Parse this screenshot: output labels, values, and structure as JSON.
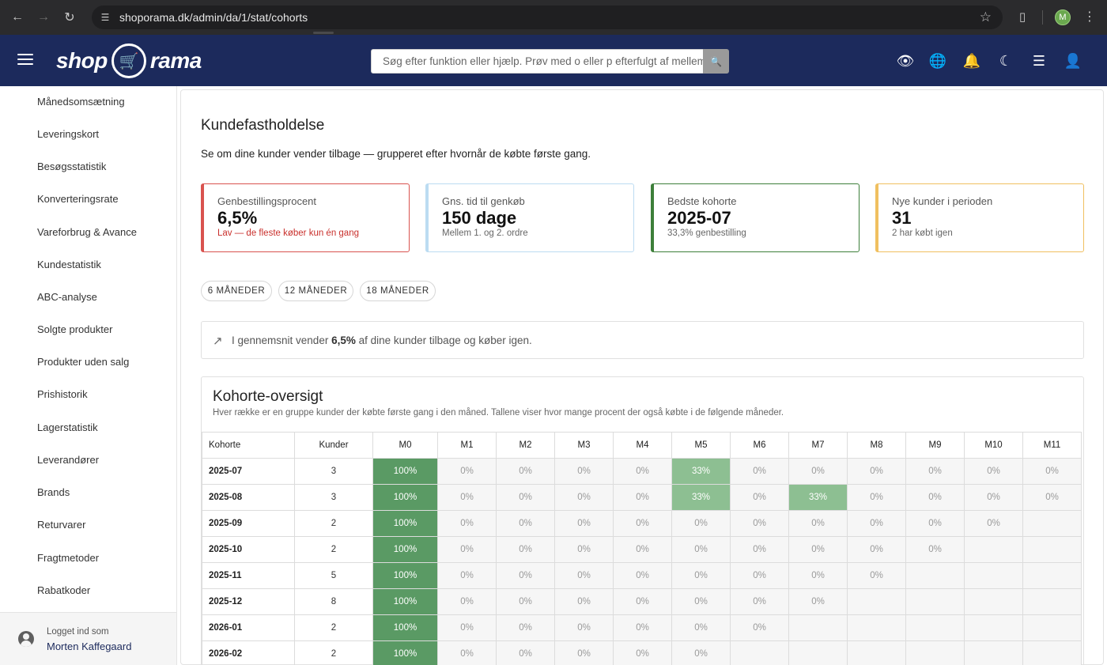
{
  "browser": {
    "url": "shoporama.dk/admin/da/1/stat/cohorts",
    "profile_initial": "M"
  },
  "header": {
    "logo_left": "shop",
    "logo_right": "rama",
    "search_placeholder": "Søg efter funktion eller hjælp. Prøv med o eller p efterfulgt af mellemrum"
  },
  "sidebar": {
    "items": [
      "Månedsomsætning",
      "Leveringskort",
      "Besøgsstatistik",
      "Konverteringsrate",
      "Vareforbrug & Avance",
      "Kundestatistik",
      "ABC-analyse",
      "Solgte produkter",
      "Produkter uden salg",
      "Prishistorik",
      "Lagerstatistik",
      "Leverandører",
      "Brands",
      "Returvarer",
      "Fragtmetoder",
      "Rabatkoder"
    ],
    "logged_in_label": "Logget ind som",
    "user_name": "Morten Kaffegaard"
  },
  "page": {
    "title": "Kundefastholdelse",
    "subtitle": "Se om dine kunder vender tilbage — grupperet efter hvornår de købte første gang."
  },
  "kpis": [
    {
      "label": "Genbestillingsprocent",
      "value": "6,5%",
      "note": "Lav — de fleste køber kun én gang",
      "accent": "#d9534f"
    },
    {
      "label": "Gns. tid til genkøb",
      "value": "150 dage",
      "note": "Mellem 1. og 2. ordre",
      "accent": "#bcdcf2"
    },
    {
      "label": "Bedste kohorte",
      "value": "2025-07",
      "note": "33,3% genbestilling",
      "accent": "#3d7f3a"
    },
    {
      "label": "Nye kunder i perioden",
      "value": "31",
      "note": "2 har købt igen",
      "accent": "#f0c060"
    }
  ],
  "period_chips": [
    "6 MÅNEDER",
    "12 MÅNEDER",
    "18 MÅNEDER"
  ],
  "info": {
    "prefix": "I gennemsnit vender ",
    "highlight": "6,5%",
    "suffix": " af dine kunder tilbage og køber igen."
  },
  "cohort_card": {
    "title": "Kohorte-oversigt",
    "description": "Hver række er en gruppe kunder der købte første gang i den måned. Tallene viser hvor mange procent der også købte i de følgende måneder.",
    "columns": [
      "Kohorte",
      "Kunder",
      "M0",
      "M1",
      "M2",
      "M3",
      "M4",
      "M5",
      "M6",
      "M7",
      "M8",
      "M9",
      "M10",
      "M11"
    ],
    "rows": [
      {
        "cohort": "2025-07",
        "customers": "3",
        "values": [
          "100%",
          "0%",
          "0%",
          "0%",
          "0%",
          "33%",
          "0%",
          "0%",
          "0%",
          "0%",
          "0%",
          "0%"
        ]
      },
      {
        "cohort": "2025-08",
        "customers": "3",
        "values": [
          "100%",
          "0%",
          "0%",
          "0%",
          "0%",
          "33%",
          "0%",
          "33%",
          "0%",
          "0%",
          "0%",
          "0%"
        ]
      },
      {
        "cohort": "2025-09",
        "customers": "2",
        "values": [
          "100%",
          "0%",
          "0%",
          "0%",
          "0%",
          "0%",
          "0%",
          "0%",
          "0%",
          "0%",
          "0%"
        ]
      },
      {
        "cohort": "2025-10",
        "customers": "2",
        "values": [
          "100%",
          "0%",
          "0%",
          "0%",
          "0%",
          "0%",
          "0%",
          "0%",
          "0%",
          "0%"
        ]
      },
      {
        "cohort": "2025-11",
        "customers": "5",
        "values": [
          "100%",
          "0%",
          "0%",
          "0%",
          "0%",
          "0%",
          "0%",
          "0%",
          "0%"
        ]
      },
      {
        "cohort": "2025-12",
        "customers": "8",
        "values": [
          "100%",
          "0%",
          "0%",
          "0%",
          "0%",
          "0%",
          "0%",
          "0%"
        ]
      },
      {
        "cohort": "2026-01",
        "customers": "2",
        "values": [
          "100%",
          "0%",
          "0%",
          "0%",
          "0%",
          "0%",
          "0%"
        ]
      },
      {
        "cohort": "2026-02",
        "customers": "2",
        "values": [
          "100%",
          "0%",
          "0%",
          "0%",
          "0%",
          "0%"
        ]
      }
    ]
  }
}
